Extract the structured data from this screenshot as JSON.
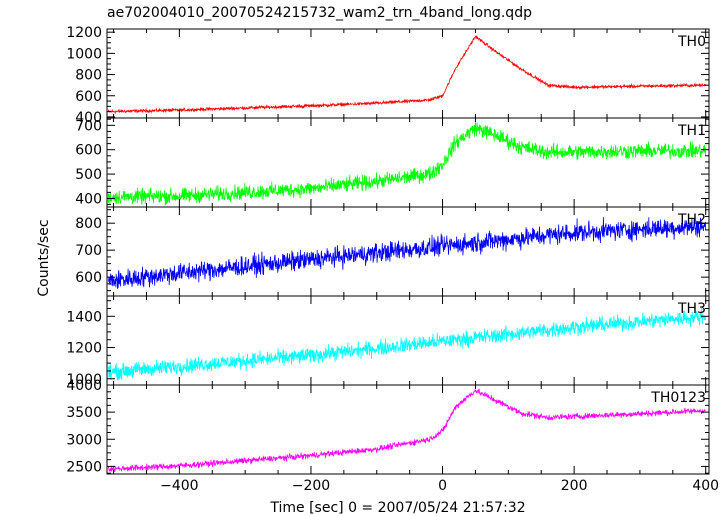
{
  "chart_data": {
    "type": "line",
    "title": "ae702004010_20070524215732_wam2_trn_4band_long.qdp",
    "xlabel": "Time [sec] 0 = 2007/05/24 21:57:32",
    "ylabel": "Counts/sec",
    "xlim": [
      -510,
      405
    ],
    "x_ticks": [
      -400,
      -200,
      0,
      200,
      400
    ],
    "x_tick_labels": [
      "−400",
      "−200",
      "0",
      "200",
      "400"
    ],
    "panels": [
      {
        "name": "TH0",
        "color": "#ff0000",
        "ylim": [
          390,
          1230
        ],
        "y_ticks": [
          400,
          600,
          800,
          1000,
          1200
        ],
        "y_tick_labels": [
          "400",
          "600",
          "800",
          "1000",
          "1200"
        ],
        "noise": 12,
        "anchors": {
          "x": [
            -510,
            -400,
            -200,
            -100,
            -20,
            0,
            20,
            50,
            80,
            120,
            160,
            200,
            300,
            400
          ],
          "y": [
            450,
            465,
            505,
            530,
            560,
            600,
            860,
            1160,
            1020,
            850,
            700,
            680,
            690,
            700
          ]
        }
      },
      {
        "name": "TH1",
        "color": "#00ff00",
        "ylim": [
          365,
          730
        ],
        "y_ticks": [
          400,
          500,
          600,
          700
        ],
        "y_tick_labels": [
          "400",
          "500",
          "600",
          "700"
        ],
        "noise": 25,
        "anchors": {
          "x": [
            -510,
            -400,
            -200,
            -100,
            -20,
            0,
            20,
            50,
            80,
            120,
            160,
            200,
            300,
            400
          ],
          "y": [
            405,
            410,
            440,
            470,
            500,
            540,
            630,
            690,
            660,
            610,
            590,
            590,
            595,
            595
          ]
        }
      },
      {
        "name": "TH2",
        "color": "#0000ff",
        "ylim": [
          530,
          860
        ],
        "y_ticks": [
          600,
          700,
          800
        ],
        "y_tick_labels": [
          "600",
          "700",
          "800"
        ],
        "noise": 30,
        "anchors": {
          "x": [
            -510,
            -400,
            -200,
            0,
            200,
            400
          ],
          "y": [
            585,
            615,
            665,
            715,
            765,
            790
          ]
        }
      },
      {
        "name": "TH3",
        "color": "#00ffff",
        "ylim": [
          960,
          1530
        ],
        "y_ticks": [
          1000,
          1200,
          1400
        ],
        "y_tick_labels": [
          "1000",
          "1200",
          "1400"
        ],
        "noise": 40,
        "anchors": {
          "x": [
            -510,
            -400,
            -200,
            0,
            200,
            400
          ],
          "y": [
            1040,
            1080,
            1150,
            1240,
            1330,
            1400
          ]
        }
      },
      {
        "name": "TH0123",
        "color": "#ff00ff",
        "ylim": [
          2360,
          4000
        ],
        "y_ticks": [
          2500,
          3000,
          3500,
          4000
        ],
        "y_tick_labels": [
          "2500",
          "3000",
          "3500",
          "4000"
        ],
        "noise": 45,
        "anchors": {
          "x": [
            -510,
            -400,
            -200,
            -100,
            -20,
            0,
            20,
            50,
            80,
            120,
            160,
            200,
            300,
            400
          ],
          "y": [
            2450,
            2510,
            2700,
            2820,
            3000,
            3150,
            3600,
            3900,
            3720,
            3480,
            3400,
            3420,
            3470,
            3530
          ]
        }
      }
    ]
  }
}
